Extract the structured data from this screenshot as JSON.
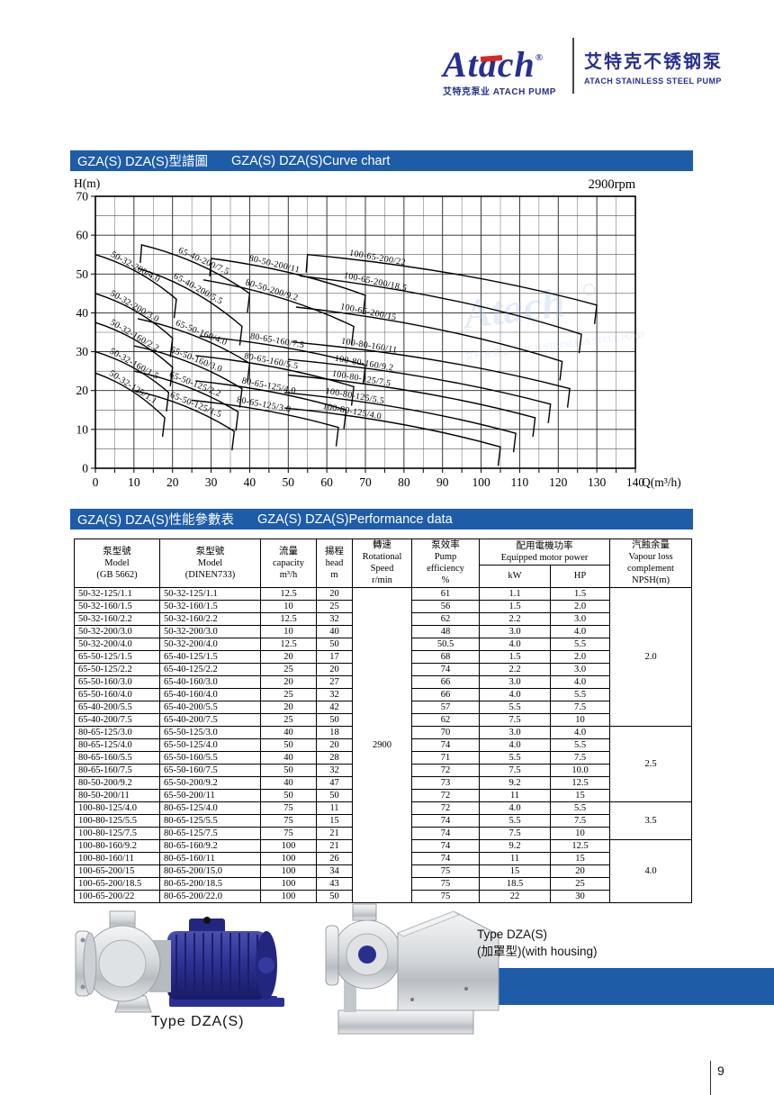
{
  "page": {
    "number": "9"
  },
  "colors": {
    "accent_blue": "#1E5CA8",
    "logo_navy": "#272F90",
    "logo_red": "#D42A20"
  },
  "logo": {
    "brand": "Atach",
    "reg": "®",
    "sub": "艾特克泵业 ATACH PUMP",
    "right_cn": "艾特克不锈钢泵",
    "right_en": "ATACH STAINLESS STEEL PUMP"
  },
  "sections": [
    {
      "cn": "GZA(S) DZA(S)型譜圖",
      "en": "GZA(S) DZA(S)Curve chart"
    },
    {
      "cn": "GZA(S) DZA(S)性能參數表",
      "en": "GZA(S) DZA(S)Performance data"
    }
  ],
  "chart_data": {
    "type": "line",
    "title": "GZA(S) DZA(S) Curve chart",
    "annotation": "2900rpm",
    "xlabel": "Q(m³/h)",
    "ylabel": "H(m)",
    "xlim": [
      0,
      140
    ],
    "ylim": [
      0,
      70
    ],
    "x_tick_step": 10,
    "y_tick_step": 10,
    "grid_step": 5,
    "grid": true,
    "legend_position": "labels-on-curves",
    "watermark": {
      "text": "Atach",
      "sub": "艾特克泵业 ATACH STAINLESS STEEL PUMP"
    },
    "series": [
      {
        "name": "50-32-200/4.0",
        "points": [
          [
            0,
            55
          ],
          [
            21,
            43.5
          ]
        ],
        "lt": 0.15
      },
      {
        "name": "50-32-200/3.0",
        "points": [
          [
            0,
            45
          ],
          [
            20,
            33.5
          ]
        ],
        "lt": 0.15
      },
      {
        "name": "50-32-160/2.2",
        "points": [
          [
            0,
            37.5
          ],
          [
            20,
            26
          ]
        ],
        "lt": 0.15
      },
      {
        "name": "50-32-160/1.5",
        "points": [
          [
            0,
            30
          ],
          [
            19,
            19.5
          ]
        ],
        "lt": 0.15
      },
      {
        "name": "50-32-125/1.1",
        "points": [
          [
            0,
            24.5
          ],
          [
            18,
            13
          ]
        ],
        "lt": 0.15
      },
      {
        "name": "65-40-200/7.5",
        "points": [
          [
            12,
            57.5
          ],
          [
            40,
            45
          ]
        ],
        "lt": 0.3,
        "riser": true
      },
      {
        "name": "65-40-200/5.5",
        "points": [
          [
            11,
            51.5
          ],
          [
            38,
            36.5
          ]
        ],
        "lt": 0.3
      },
      {
        "name": "65-50-160/4.0",
        "points": [
          [
            11,
            38.5
          ],
          [
            40,
            27
          ]
        ],
        "lt": 0.3
      },
      {
        "name": "65-50-160/3.0",
        "points": [
          [
            10,
            31.5
          ],
          [
            38,
            20.5
          ]
        ],
        "lt": 0.3
      },
      {
        "name": "65-50-125/2.2",
        "points": [
          [
            10,
            25
          ],
          [
            37,
            14.5
          ]
        ],
        "lt": 0.3
      },
      {
        "name": "65-50-125/1.5",
        "points": [
          [
            10,
            20
          ],
          [
            36,
            9.5
          ]
        ],
        "lt": 0.32
      },
      {
        "name": "80-50-200/11",
        "points": [
          [
            30,
            54
          ],
          [
            70,
            44.5
          ]
        ],
        "lt": 0.22,
        "riser": true
      },
      {
        "name": "80-50-200/9.2",
        "points": [
          [
            28,
            48.5
          ],
          [
            67,
            36.5
          ]
        ],
        "lt": 0.25
      },
      {
        "name": "80-65-160/7.5",
        "points": [
          [
            27,
            34
          ],
          [
            70,
            26.5
          ]
        ],
        "lt": 0.28
      },
      {
        "name": "80-65-160/5.5",
        "points": [
          [
            26,
            29
          ],
          [
            67,
            21
          ]
        ],
        "lt": 0.28
      },
      {
        "name": "80-65-125/4.0",
        "points": [
          [
            26,
            22.5
          ],
          [
            65,
            15
          ]
        ],
        "lt": 0.28
      },
      {
        "name": "80-65-125/3.0",
        "points": [
          [
            25,
            17.5
          ],
          [
            63,
            10.5
          ]
        ],
        "lt": 0.28
      },
      {
        "name": "100-65-200/22",
        "points": [
          [
            55,
            55
          ],
          [
            130,
            42
          ]
        ],
        "lt": 0.13,
        "riser": true
      },
      {
        "name": "100-65-200/18.5",
        "points": [
          [
            53,
            49.5
          ],
          [
            126,
            34.5
          ]
        ],
        "lt": 0.14
      },
      {
        "name": "100-65-200/15",
        "points": [
          [
            52,
            41.5
          ],
          [
            121,
            27.5
          ]
        ],
        "lt": 0.15
      },
      {
        "name": "100-80-160/11",
        "points": [
          [
            51,
            32.5
          ],
          [
            123,
            20.5
          ]
        ],
        "lt": 0.16
      },
      {
        "name": "100-80-160/9.2",
        "points": [
          [
            50,
            28
          ],
          [
            118,
            16.5
          ]
        ],
        "lt": 0.16
      },
      {
        "name": "100-80-125/7.5",
        "points": [
          [
            50,
            24
          ],
          [
            114,
            13
          ]
        ],
        "lt": 0.16
      },
      {
        "name": "100-80-125/5.5",
        "points": [
          [
            49,
            19.5
          ],
          [
            109,
            9
          ]
        ],
        "lt": 0.16
      },
      {
        "name": "100-80-125/4.0",
        "points": [
          [
            49,
            15.5
          ],
          [
            105,
            5.5
          ]
        ],
        "lt": 0.16
      }
    ]
  },
  "table": {
    "header": {
      "model_gb": [
        "泵型號",
        "Model",
        "(GB 5662)"
      ],
      "model_din": [
        "泵型號",
        "Model",
        "(DINEN733)"
      ],
      "capacity": [
        "流量",
        "capacity",
        "m³/h"
      ],
      "head": [
        "揚程",
        "head",
        "m"
      ],
      "speed": [
        "轉速",
        "Rotational",
        "Speed",
        "r/min"
      ],
      "efficiency": [
        "泵效率",
        "Pump",
        "efficiency",
        "%"
      ],
      "power": [
        "配用電機功率",
        "Equipped motor power"
      ],
      "kw": "kW",
      "hp": "HP",
      "npsh": [
        "汽蝕余量",
        "Vapour loss",
        "complement",
        "NPSH(m)"
      ]
    },
    "speed_value": "2900",
    "rows": [
      [
        "50-32-125/1.1",
        "50-32-125/1.1",
        "12.5",
        "20",
        "61",
        "1.1",
        "1.5"
      ],
      [
        "50-32-160/1.5",
        "50-32-160/1.5",
        "10",
        "25",
        "56",
        "1.5",
        "2.0"
      ],
      [
        "50-32-160/2.2",
        "50-32-160/2.2",
        "12.5",
        "32",
        "62",
        "2.2",
        "3.0"
      ],
      [
        "50-32-200/3.0",
        "50-32-200/3.0",
        "10",
        "40",
        "48",
        "3.0",
        "4.0"
      ],
      [
        "50-32-200/4.0",
        "50-32-200/4.0",
        "12.5",
        "50",
        "50.5",
        "4.0",
        "5.5"
      ],
      [
        "65-50-125/1.5",
        "65-40-125/1.5",
        "20",
        "17",
        "68",
        "1.5",
        "2.0"
      ],
      [
        "65-50-125/2.2",
        "65-40-125/2.2",
        "25",
        "20",
        "74",
        "2.2",
        "3.0"
      ],
      [
        "65-50-160/3.0",
        "65-40-160/3.0",
        "20",
        "27",
        "66",
        "3.0",
        "4.0"
      ],
      [
        "65-50-160/4.0",
        "65-40-160/4.0",
        "25",
        "32",
        "66",
        "4.0",
        "5.5"
      ],
      [
        "65-40-200/5.5",
        "65-40-200/5.5",
        "20",
        "42",
        "57",
        "5.5",
        "7.5"
      ],
      [
        "65-40-200/7.5",
        "65-40-200/7.5",
        "25",
        "50",
        "62",
        "7.5",
        "10"
      ],
      [
        "80-65-125/3.0",
        "65-50-125/3.0",
        "40",
        "18",
        "70",
        "3.0",
        "4.0"
      ],
      [
        "80-65-125/4.0",
        "65-50-125/4.0",
        "50",
        "20",
        "74",
        "4.0",
        "5.5"
      ],
      [
        "80-65-160/5.5",
        "65-50-160/5.5",
        "40",
        "28",
        "71",
        "5.5",
        "7.5"
      ],
      [
        "80-65-160/7.5",
        "65-50-160/7.5",
        "50",
        "32",
        "72",
        "7.5",
        "10.0"
      ],
      [
        "80-50-200/9.2",
        "65-50-200/9.2",
        "40",
        "47",
        "73",
        "9.2",
        "12.5"
      ],
      [
        "80-50-200/11",
        "65-50-200/11",
        "50",
        "50",
        "72",
        "11",
        "15"
      ],
      [
        "100-80-125/4.0",
        "80-65-125/4.0",
        "75",
        "11",
        "72",
        "4.0",
        "5.5"
      ],
      [
        "100-80-125/5.5",
        "80-65-125/5.5",
        "75",
        "15",
        "74",
        "5.5",
        "7.5"
      ],
      [
        "100-80-125/7.5",
        "80-65-125/7.5",
        "75",
        "21",
        "74",
        "7.5",
        "10"
      ],
      [
        "100-80-160/9.2",
        "80-65-160/9.2",
        "100",
        "21",
        "74",
        "9.2",
        "12.5"
      ],
      [
        "100-80-160/11",
        "80-65-160/11",
        "100",
        "26",
        "74",
        "11",
        "15"
      ],
      [
        "100-65-200/15",
        "80-65-200/15.0",
        "100",
        "34",
        "75",
        "15",
        "20"
      ],
      [
        "100-65-200/18.5",
        "80-65-200/18.5",
        "100",
        "43",
        "75",
        "18.5",
        "25"
      ],
      [
        "100-65-200/22",
        "80-65-200/22.0",
        "100",
        "50",
        "75",
        "22",
        "30"
      ]
    ],
    "npsh_groups": [
      {
        "value": "2.0",
        "span": 11
      },
      {
        "value": "2.5",
        "span": 6
      },
      {
        "value": "3.5",
        "span": 3
      },
      {
        "value": "4.0",
        "span": 5
      }
    ]
  },
  "figures": {
    "left_caption": "Type  DZA(S)",
    "right_caption_line1": "Type DZA(S)",
    "right_caption_line2": "(加罩型)(with housing)"
  }
}
